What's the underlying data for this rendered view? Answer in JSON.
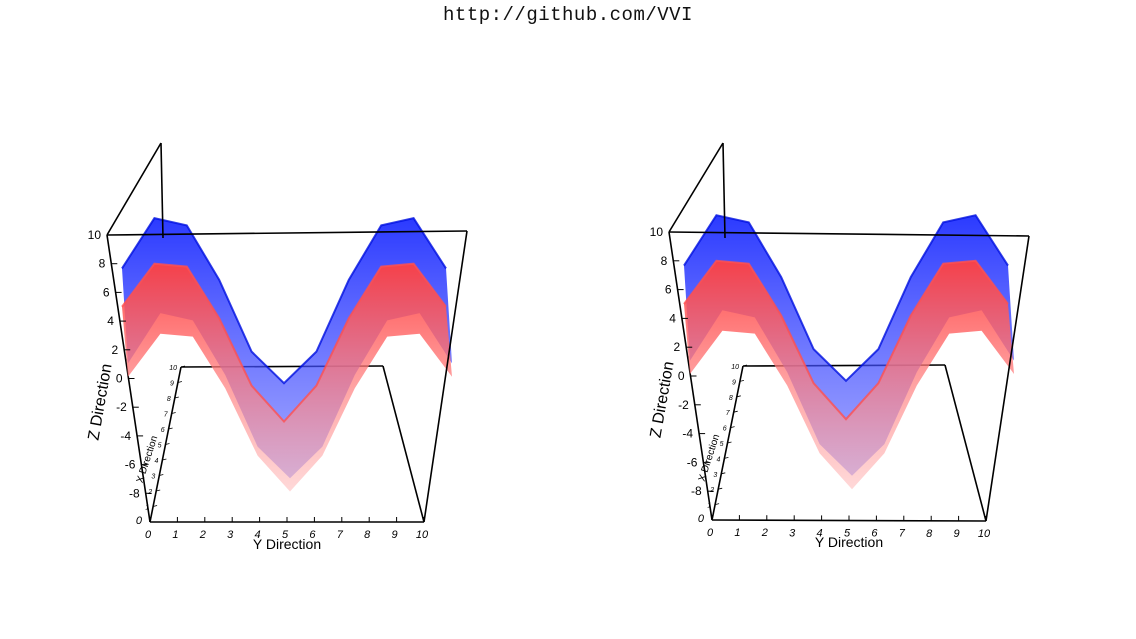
{
  "header": {
    "title": "http://github.com/VVI"
  },
  "chart_data": [
    {
      "type": "surface3d",
      "view": "left",
      "title": "",
      "xlabel": "X Direction",
      "ylabel": "Y Direction",
      "zlabel": "Z Direction",
      "xlim": [
        0,
        10
      ],
      "ylim": [
        0,
        10
      ],
      "zlim": [
        -10,
        10
      ],
      "x_ticks": [
        0,
        1,
        2,
        3,
        4,
        5,
        6,
        7,
        8,
        9,
        10
      ],
      "y_ticks": [
        0,
        1,
        2,
        3,
        4,
        5,
        6,
        7,
        8,
        9,
        10
      ],
      "z_ticks": [
        -8,
        -6,
        -4,
        -2,
        0,
        2,
        4,
        6,
        8,
        10
      ],
      "z_origin_label": "0",
      "series": [
        {
          "color": "#0000ff",
          "y": [
            0,
            1,
            2,
            3,
            4,
            5,
            6,
            7,
            8,
            9,
            10
          ],
          "z": [
            6.0,
            9.5,
            9.0,
            5.2,
            0.2,
            -2.0,
            0.2,
            5.2,
            9.0,
            9.5,
            6.0
          ]
        },
        {
          "color": "#ff3a3a",
          "y": [
            0,
            1,
            2,
            3,
            4,
            5,
            6,
            7,
            8,
            9,
            10
          ],
          "z": [
            5.0,
            8.0,
            7.8,
            4.2,
            -0.5,
            -3.0,
            -0.5,
            4.2,
            7.8,
            8.0,
            5.0
          ]
        }
      ]
    },
    {
      "type": "surface3d",
      "view": "right",
      "title": "",
      "xlabel": "X Direction",
      "ylabel": "Y Direction",
      "zlabel": "Z Direction",
      "xlim": [
        0,
        10
      ],
      "ylim": [
        0,
        10
      ],
      "zlim": [
        -10,
        10
      ],
      "x_ticks": [
        0,
        1,
        2,
        3,
        4,
        5,
        6,
        7,
        8,
        9,
        10
      ],
      "y_ticks": [
        0,
        1,
        2,
        3,
        4,
        5,
        6,
        7,
        8,
        9,
        10
      ],
      "z_ticks": [
        -8,
        -6,
        -4,
        -2,
        0,
        2,
        4,
        6,
        8,
        10
      ],
      "z_origin_label": "0",
      "series": [
        {
          "color": "#0000ff",
          "y": [
            0,
            1,
            2,
            3,
            4,
            5,
            6,
            7,
            8,
            9,
            10
          ],
          "z": [
            6.0,
            9.5,
            9.0,
            5.2,
            0.2,
            -2.0,
            0.2,
            5.2,
            9.0,
            9.5,
            6.0
          ]
        },
        {
          "color": "#ff3a3a",
          "y": [
            0,
            1,
            2,
            3,
            4,
            5,
            6,
            7,
            8,
            9,
            10
          ],
          "z": [
            5.0,
            8.0,
            7.8,
            4.2,
            -0.5,
            -3.0,
            -0.5,
            4.2,
            7.8,
            8.0,
            5.0
          ]
        }
      ]
    }
  ]
}
